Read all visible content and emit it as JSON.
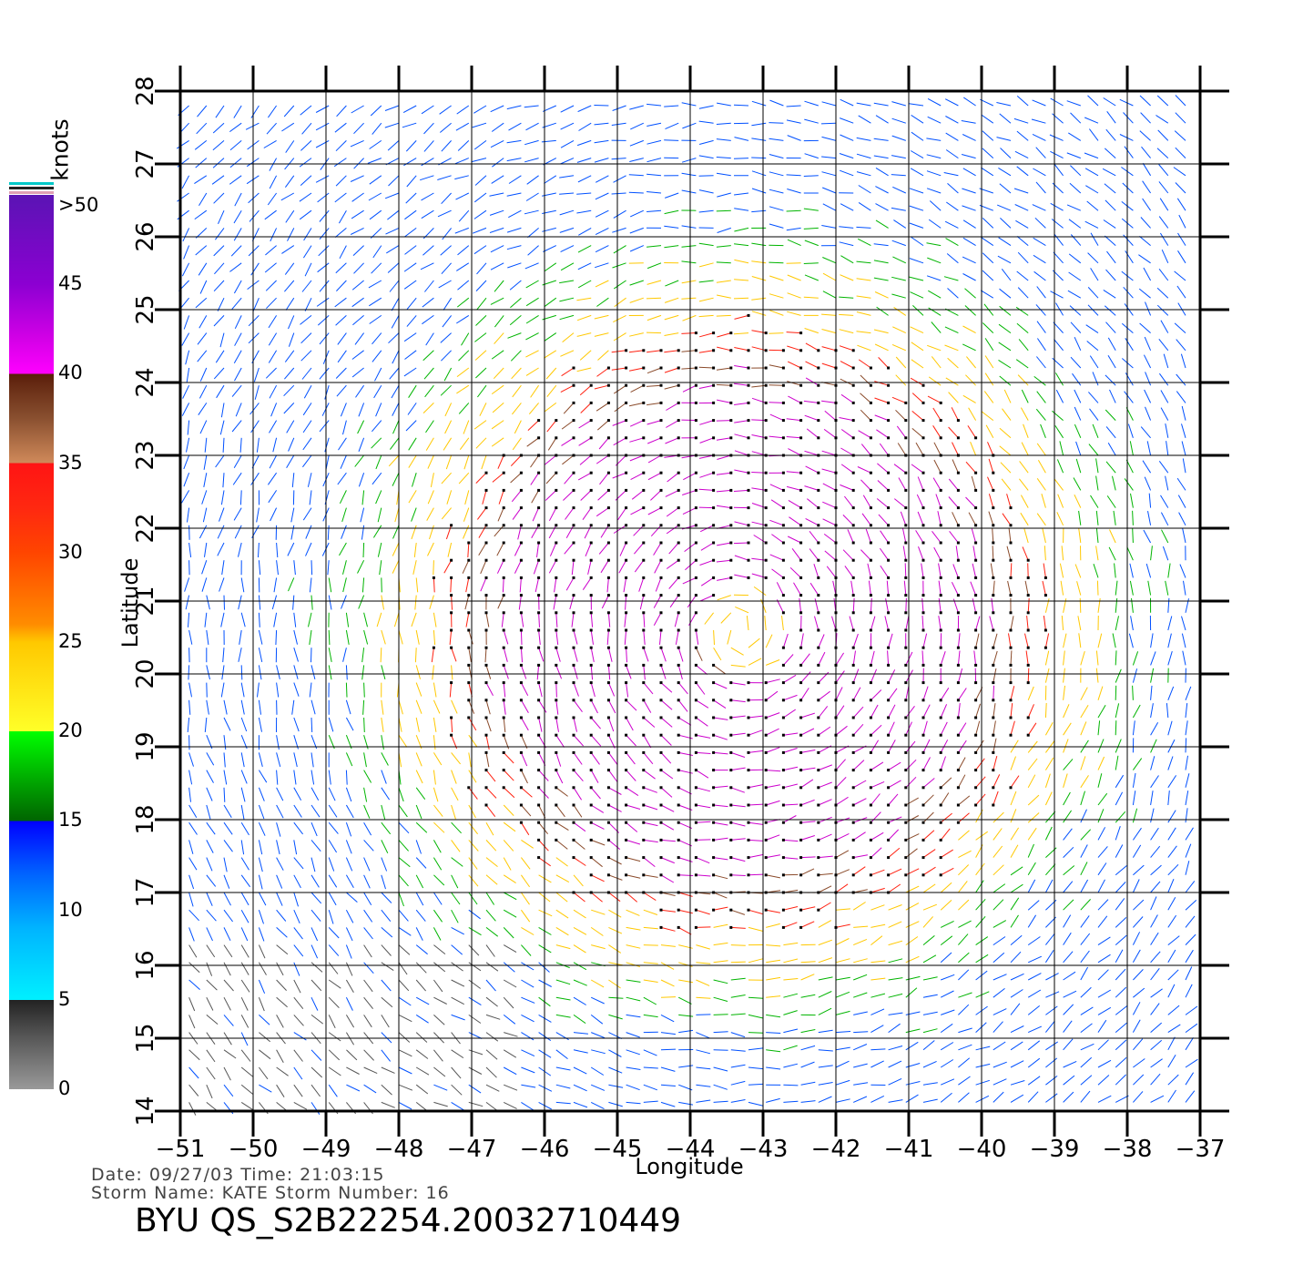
{
  "chart_data": {
    "type": "wind-vector-map",
    "xlabel": "Longitude",
    "ylabel": "Latitude",
    "xlim": [
      -51,
      -37
    ],
    "ylim": [
      14,
      28
    ],
    "x_ticks": [
      "−51",
      "−50",
      "−49",
      "−48",
      "−47",
      "−46",
      "−45",
      "−44",
      "−43",
      "−42",
      "−41",
      "−40",
      "−39",
      "−38",
      "−37"
    ],
    "y_ticks": [
      "14",
      "15",
      "16",
      "17",
      "18",
      "19",
      "20",
      "21",
      "22",
      "23",
      "24",
      "25",
      "26",
      "27",
      "28"
    ],
    "grid": true,
    "storm_center": [
      -43.3,
      20.6
    ],
    "colorbar": {
      "unit": "knots",
      "tick_labels": [
        ">50",
        "45",
        "40",
        "35",
        "30",
        "25",
        "20",
        "15",
        "10",
        "5",
        "0"
      ],
      "bins": [
        {
          "range": [
            0,
            5
          ],
          "color": "#555555"
        },
        {
          "range": [
            5,
            15
          ],
          "color": "#0050ff"
        },
        {
          "range": [
            15,
            20
          ],
          "color": "#00b400"
        },
        {
          "range": [
            20,
            30
          ],
          "color": "#ffc800"
        },
        {
          "range": [
            30,
            35
          ],
          "color": "#ff2010"
        },
        {
          "range": [
            35,
            40
          ],
          "color": "#8a4a2a"
        },
        {
          "range": [
            40,
            50
          ],
          "color": "#cc00cc"
        }
      ]
    }
  },
  "footer": {
    "date_line": "Date: 09/27/03   Time: 21:03:15",
    "storm_line": "Storm  Name: KATE   Storm  Number: 16",
    "product": "BYU  QS_S2B22254.20032710449"
  }
}
